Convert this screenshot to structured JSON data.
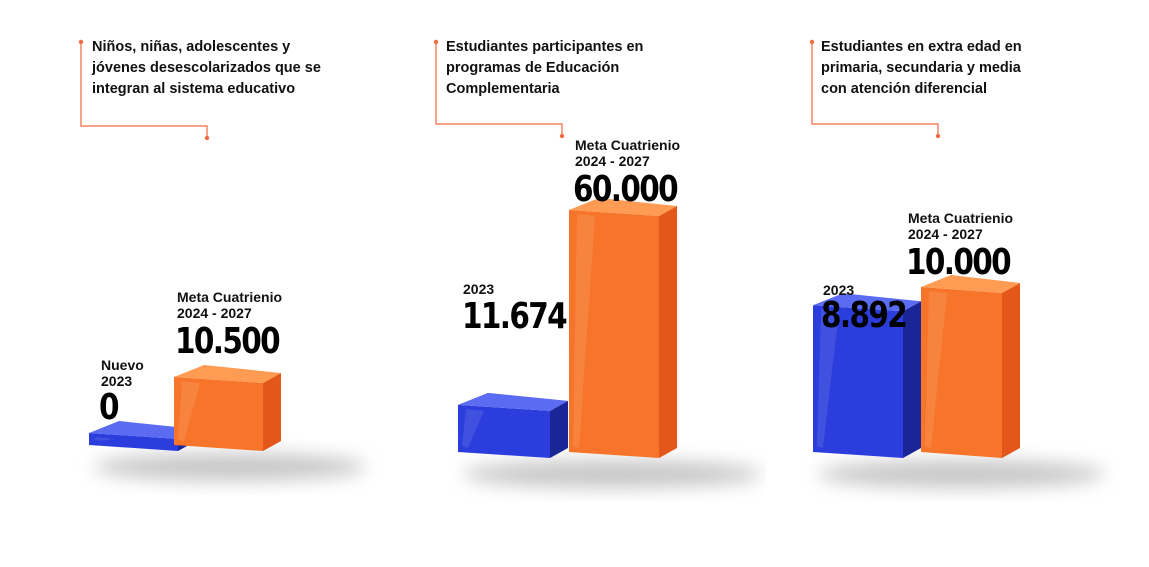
{
  "colors": {
    "accent_line": "#f06a40",
    "bar_2023_front": "#2b3ddc",
    "bar_2023_top": "#5b6cf2",
    "bar_2023_side": "#1a2596",
    "bar_meta_front": "#f7752a",
    "bar_meta_top": "#ff9b52",
    "bar_meta_side": "#e4571a"
  },
  "chart_data": [
    {
      "type": "bar",
      "title": "Niños, niñas, adolescentes y\njóvenes desescolarizados que se\nintegran al sistema educativo",
      "categories": [
        "Nuevo\n2023",
        "Meta Cuatrienio\n2024 - 2027"
      ],
      "values": [
        0,
        10500
      ],
      "value_labels": [
        "0",
        "10.500"
      ]
    },
    {
      "type": "bar",
      "title": "Estudiantes participantes en\nprogramas de Educación\nComplementaria",
      "categories": [
        "2023",
        "Meta Cuatrienio\n2024 - 2027"
      ],
      "values": [
        11674,
        60000
      ],
      "value_labels": [
        "11.674",
        "60.000"
      ]
    },
    {
      "type": "bar",
      "title": "Estudiantes en extra edad en\nprimaria, secundaria y media\ncon atención diferencial",
      "categories": [
        "2023",
        "Meta Cuatrienio\n2024 - 2027"
      ],
      "values": [
        8892,
        10000
      ],
      "value_labels": [
        "8.892",
        "10.000"
      ]
    }
  ]
}
